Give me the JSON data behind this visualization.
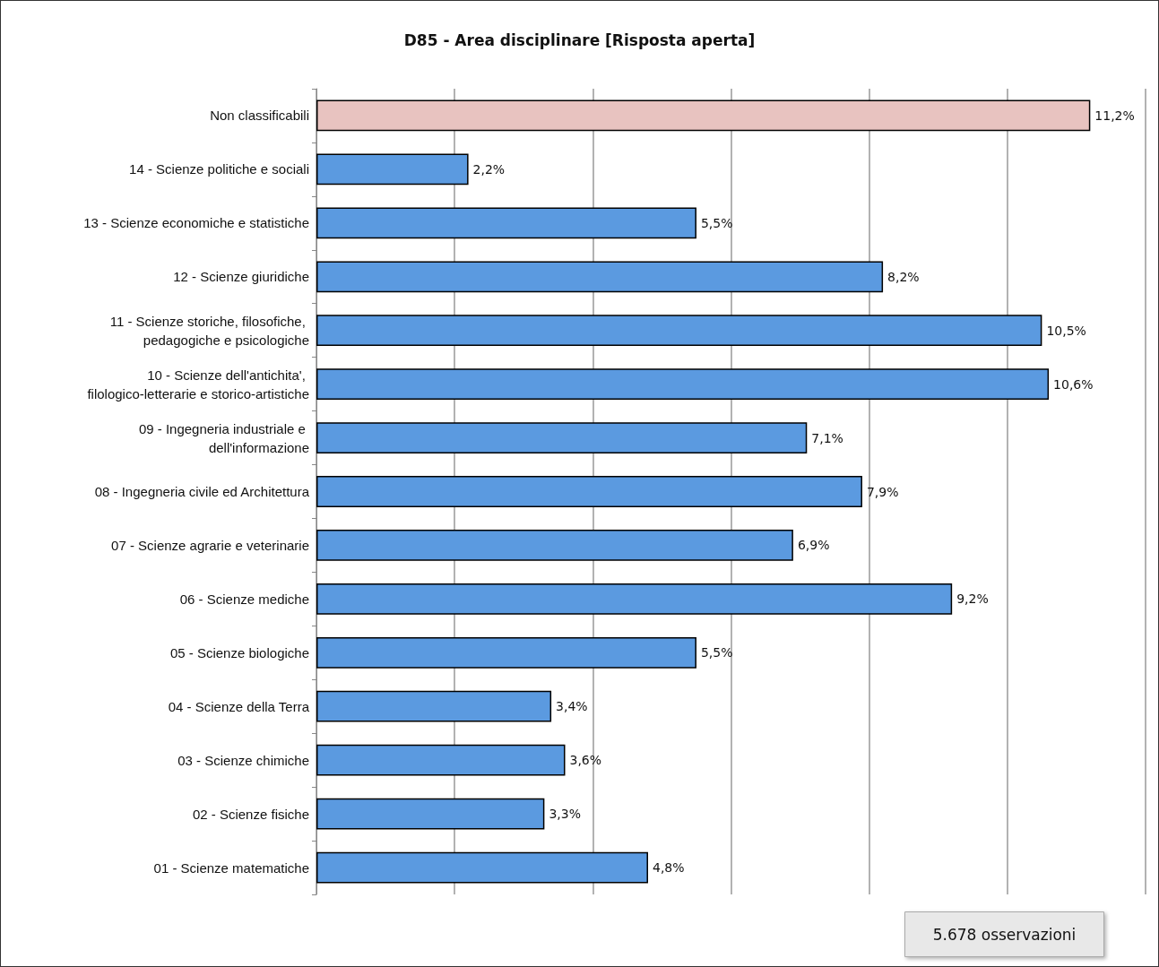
{
  "chart_data": {
    "type": "bar",
    "orientation": "horizontal",
    "title": "D85 - Area disciplinare [Risposta aperta]",
    "categories": [
      "Non classificabili",
      "14 - Scienze politiche e sociali",
      "13 - Scienze economiche e statistiche",
      "12 - Scienze giuridiche",
      "11 - Scienze storiche, filosofiche, pedagogiche e psicologiche",
      "10 - Scienze dell'antichita', filologico-letterarie e storico-artistiche",
      "09 - Ingegneria industriale e dell'informazione",
      "08 - Ingegneria civile ed Architettura",
      "07 - Scienze agrarie e veterinarie",
      "06 - Scienze mediche",
      "05 - Scienze biologiche",
      "04 - Scienze della Terra",
      "03 - Scienze chimiche",
      "02 - Scienze fisiche",
      "01 - Scienze matematiche"
    ],
    "values": [
      11.2,
      2.2,
      5.5,
      8.2,
      10.5,
      10.6,
      7.1,
      7.9,
      6.9,
      9.2,
      5.5,
      3.4,
      3.6,
      3.3,
      4.8
    ],
    "value_labels": [
      "11,2%",
      "2,2%",
      "5,5%",
      "8,2%",
      "10,5%",
      "10,6%",
      "7,1%",
      "7,9%",
      "6,9%",
      "9,2%",
      "5,5%",
      "3,4%",
      "3,6%",
      "3,3%",
      "4,8%"
    ],
    "colors": [
      "#e8c3c0",
      "#5b9ae0",
      "#5b9ae0",
      "#5b9ae0",
      "#5b9ae0",
      "#5b9ae0",
      "#5b9ae0",
      "#5b9ae0",
      "#5b9ae0",
      "#5b9ae0",
      "#5b9ae0",
      "#5b9ae0",
      "#5b9ae0",
      "#5b9ae0",
      "#5b9ae0"
    ],
    "xlim": [
      0,
      12
    ],
    "xticks": [
      {
        "value": 0,
        "label": null
      },
      {
        "value": 2,
        "label": null
      },
      {
        "value": 4,
        "label": null
      },
      {
        "value": 6,
        "label": null
      },
      {
        "value": 8,
        "label": null
      },
      {
        "value": 10,
        "label": null
      },
      {
        "value": 12,
        "label": null
      }
    ],
    "grid": "x",
    "tick_labels": "y",
    "annotations": [
      "5.678 osservazioni"
    ]
  }
}
